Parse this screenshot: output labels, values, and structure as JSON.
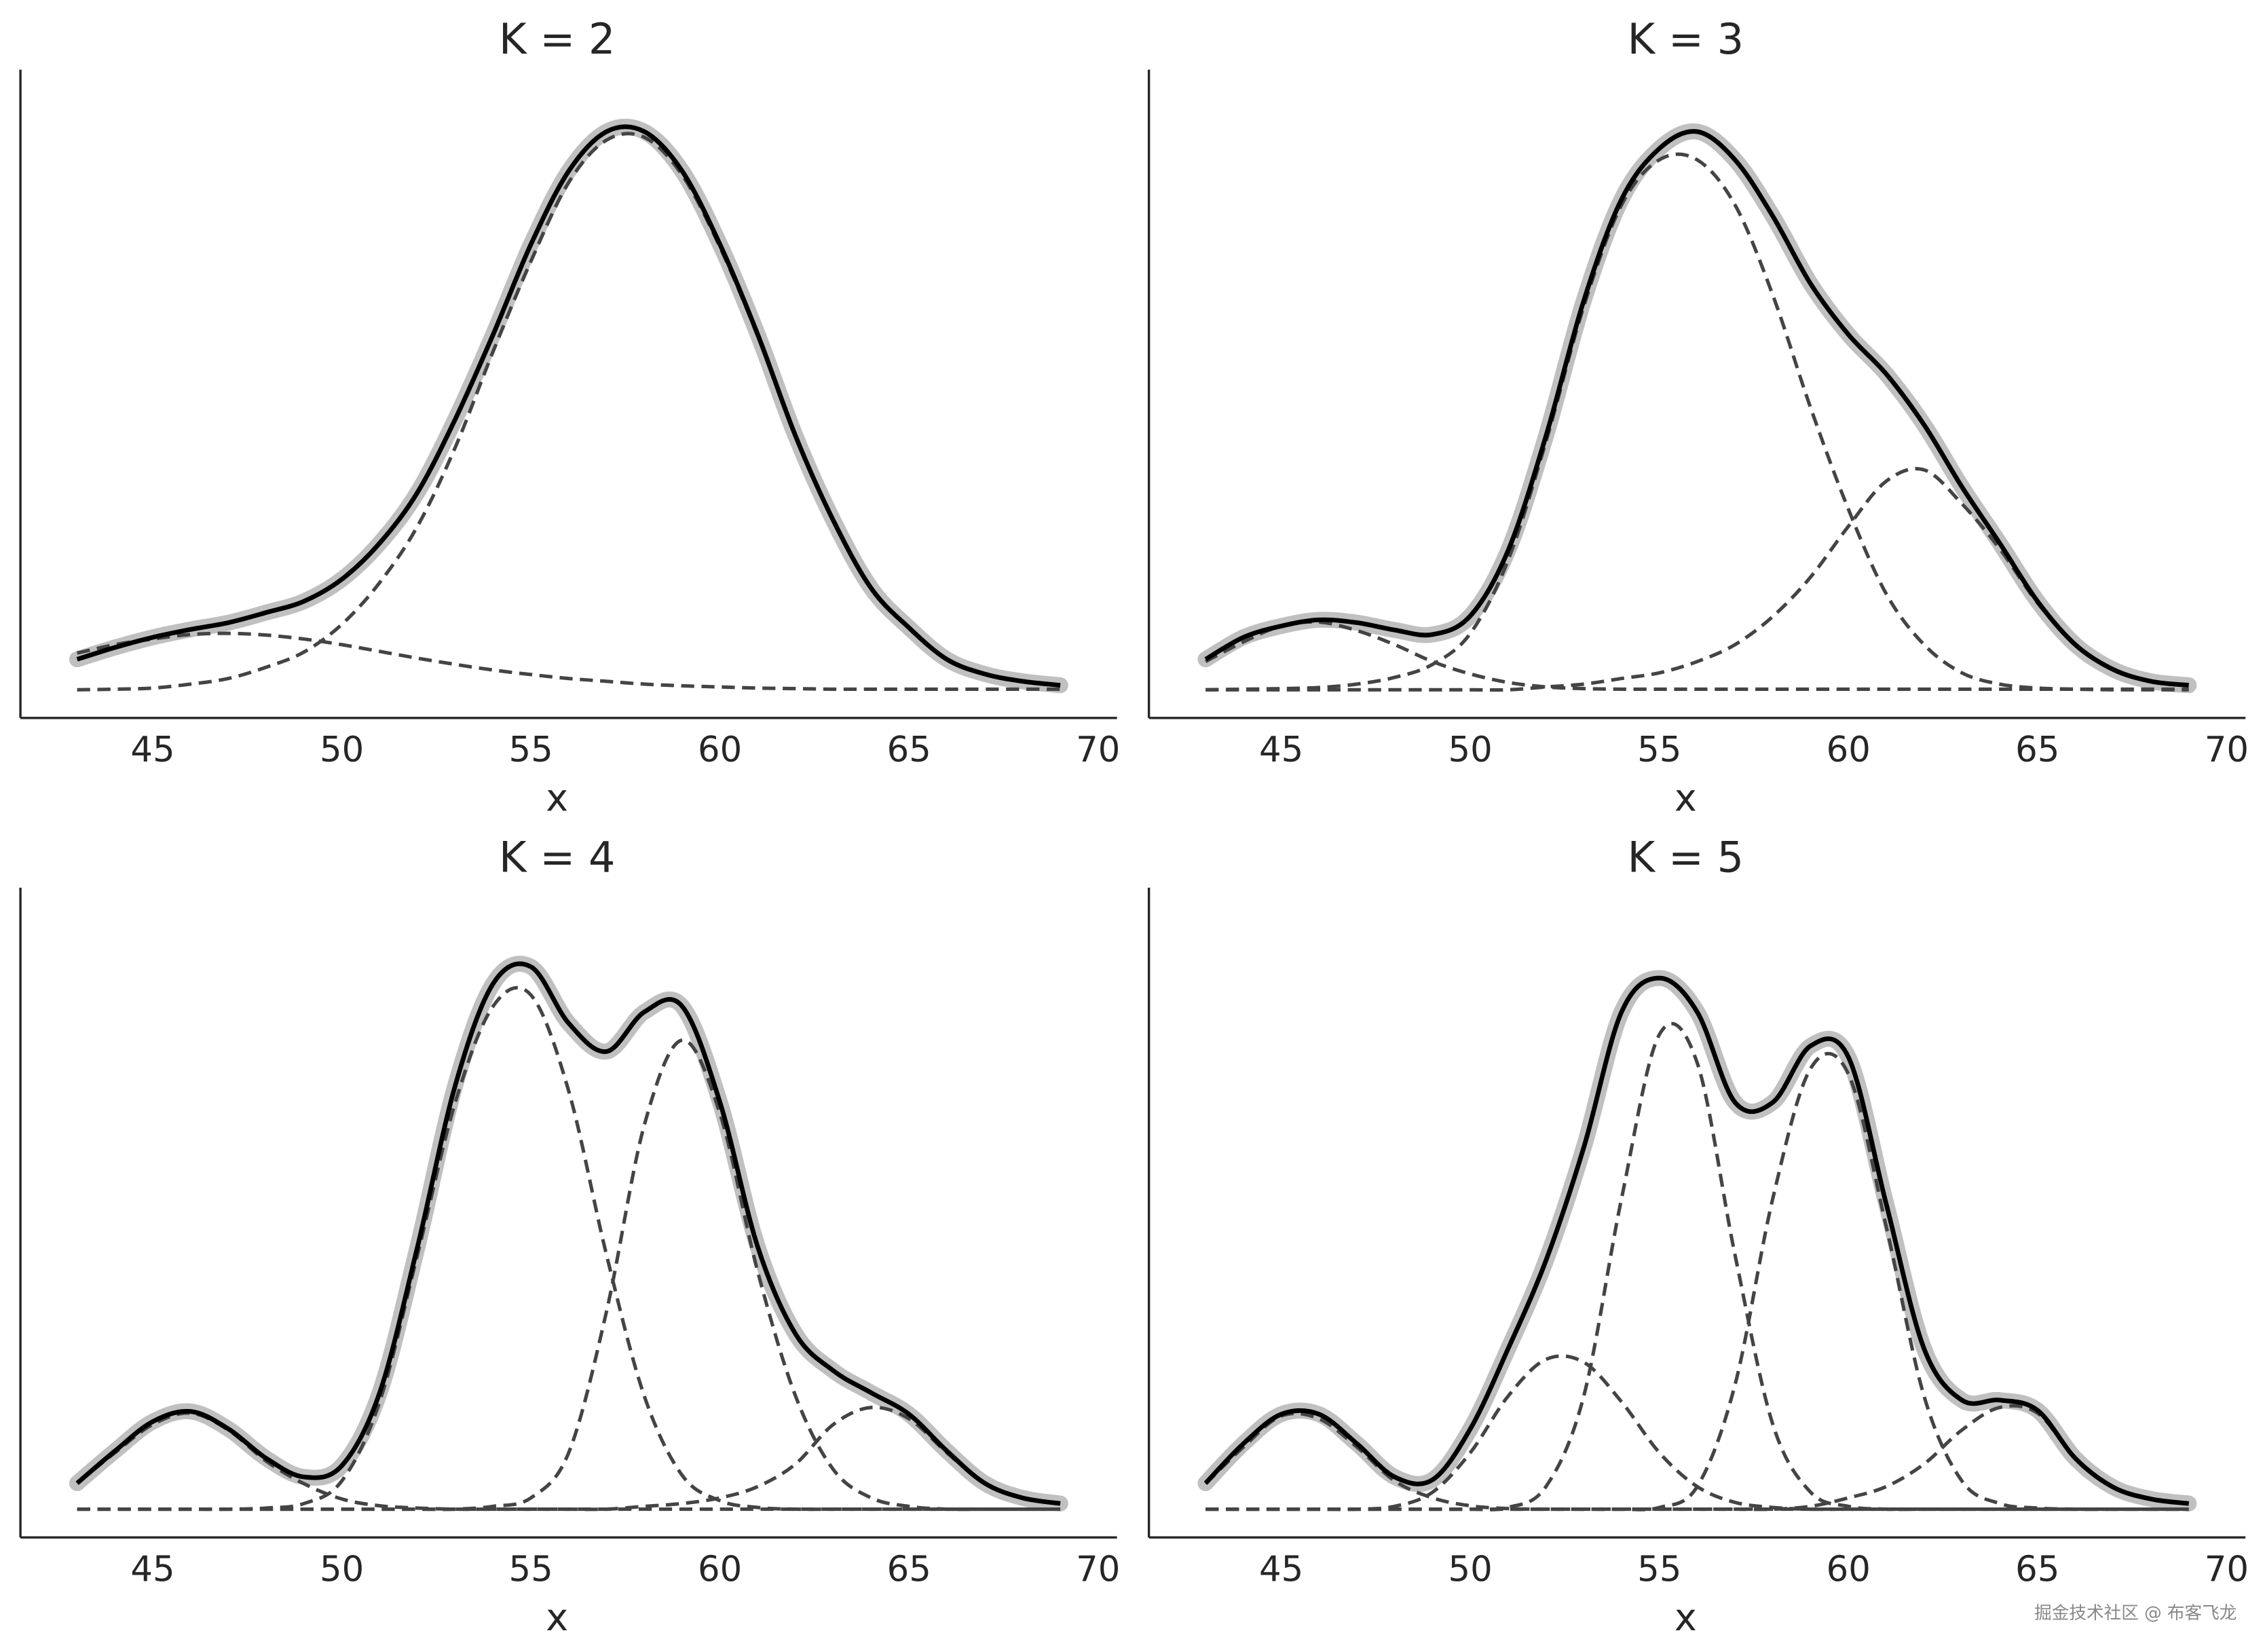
{
  "chart_data": [
    {
      "type": "line",
      "title": "K = 2",
      "xlabel": "x",
      "x": [
        43,
        44,
        45,
        46,
        47,
        48,
        49,
        50,
        51,
        52,
        53,
        54,
        55,
        56,
        57,
        58,
        59,
        60,
        61,
        62,
        63,
        64,
        65,
        66,
        67,
        68,
        69
      ],
      "xlim": [
        41.5,
        70.5
      ],
      "ylim": [
        -0.05,
        1.1
      ],
      "xticks": [
        45,
        50,
        55,
        60,
        65,
        70
      ],
      "band_color": "#c0c0c0",
      "series": [
        {
          "color": "#000000",
          "style": "solid",
          "values": [
            0.054,
            0.075,
            0.093,
            0.107,
            0.119,
            0.137,
            0.157,
            0.196,
            0.26,
            0.35,
            0.48,
            0.63,
            0.79,
            0.92,
            0.99,
            0.99,
            0.92,
            0.79,
            0.63,
            0.45,
            0.3,
            0.18,
            0.11,
            0.054,
            0.028,
            0.015,
            0.008
          ]
        },
        {
          "color": "#444444",
          "style": "dashed",
          "values": [
            0.065,
            0.08,
            0.09,
            0.098,
            0.1,
            0.097,
            0.09,
            0.08,
            0.068,
            0.056,
            0.045,
            0.035,
            0.027,
            0.02,
            0.015,
            0.01,
            0.007,
            0.005,
            0.003,
            0.002,
            0.001,
            0.001,
            0.001,
            0.001,
            0.001,
            0.001,
            0.001
          ]
        },
        {
          "color": "#444444",
          "style": "dashed",
          "values": [
            0,
            0.001,
            0.003,
            0.01,
            0.02,
            0.04,
            0.067,
            0.116,
            0.19,
            0.29,
            0.43,
            0.6,
            0.76,
            0.9,
            0.975,
            0.98,
            0.913,
            0.785,
            0.627,
            0.448,
            0.299,
            0.179,
            0.109,
            0.053,
            0.027,
            0.014,
            0.007
          ]
        }
      ]
    },
    {
      "type": "line",
      "title": "K = 3",
      "xlabel": "x",
      "x": [
        43,
        44,
        45,
        46,
        47,
        48,
        49,
        50,
        51,
        52,
        53,
        54,
        55,
        56,
        57,
        58,
        59,
        60,
        61,
        62,
        63,
        64,
        65,
        66,
        67,
        68,
        69
      ],
      "xlim": [
        41.5,
        70.5
      ],
      "ylim": [
        -0.05,
        1.1
      ],
      "xticks": [
        45,
        50,
        55,
        60,
        65,
        70
      ],
      "band_color": "#c0c0c0",
      "series": [
        {
          "color": "#000000",
          "style": "solid",
          "values": [
            0.054,
            0.093,
            0.113,
            0.124,
            0.119,
            0.106,
            0.098,
            0.131,
            0.247,
            0.45,
            0.69,
            0.87,
            0.96,
            0.99,
            0.94,
            0.84,
            0.72,
            0.63,
            0.56,
            0.47,
            0.36,
            0.26,
            0.157,
            0.08,
            0.036,
            0.015,
            0.008
          ]
        },
        {
          "color": "#444444",
          "style": "dashed",
          "values": [
            0.05,
            0.085,
            0.113,
            0.12,
            0.105,
            0.08,
            0.05,
            0.028,
            0.013,
            0.005,
            0.002,
            0.001,
            0.001,
            0.001,
            0.001,
            0.001,
            0.001,
            0.001,
            0.001,
            0.001,
            0.001,
            0.001,
            0.001,
            0.001,
            0.001,
            0.001,
            0.001
          ]
        },
        {
          "color": "#444444",
          "style": "dashed",
          "values": [
            0,
            0.001,
            0.002,
            0.004,
            0.01,
            0.022,
            0.045,
            0.1,
            0.23,
            0.44,
            0.68,
            0.86,
            0.94,
            0.94,
            0.86,
            0.7,
            0.5,
            0.32,
            0.17,
            0.08,
            0.03,
            0.01,
            0.003,
            0.001,
            0,
            0,
            0
          ]
        },
        {
          "color": "#444444",
          "style": "dashed",
          "values": [
            0,
            0,
            0,
            0,
            0,
            0,
            0,
            0,
            0,
            0.005,
            0.01,
            0.02,
            0.03,
            0.05,
            0.08,
            0.13,
            0.2,
            0.29,
            0.37,
            0.39,
            0.33,
            0.25,
            0.154,
            0.08,
            0.036,
            0.015,
            0.008
          ]
        }
      ]
    },
    {
      "type": "line",
      "title": "K = 4",
      "xlabel": "x",
      "x": [
        43,
        44,
        45,
        46,
        47,
        48,
        49,
        50,
        51,
        52,
        53,
        54,
        55,
        56,
        57,
        58,
        59,
        60,
        61,
        62,
        63,
        64,
        65,
        66,
        67,
        68,
        69
      ],
      "xlim": [
        41.5,
        70.5
      ],
      "ylim": [
        -0.05,
        1.1
      ],
      "xticks": [
        45,
        50,
        55,
        60,
        65,
        70
      ],
      "band_color": "#c0c0c0",
      "series": [
        {
          "color": "#000000",
          "style": "solid",
          "values": [
            0.046,
            0.103,
            0.155,
            0.173,
            0.142,
            0.09,
            0.057,
            0.077,
            0.206,
            0.464,
            0.75,
            0.93,
            0.96,
            0.86,
            0.81,
            0.88,
            0.89,
            0.72,
            0.464,
            0.31,
            0.245,
            0.206,
            0.168,
            0.103,
            0.046,
            0.02,
            0.01
          ]
        },
        {
          "color": "#444444",
          "style": "dashed",
          "values": [
            0.046,
            0.1,
            0.15,
            0.17,
            0.14,
            0.085,
            0.045,
            0.018,
            0.006,
            0.002,
            0,
            0,
            0,
            0,
            0,
            0,
            0,
            0,
            0,
            0,
            0,
            0,
            0,
            0,
            0,
            0,
            0
          ]
        },
        {
          "color": "#444444",
          "style": "dashed",
          "values": [
            0,
            0,
            0,
            0,
            0,
            0.002,
            0.01,
            0.05,
            0.19,
            0.45,
            0.72,
            0.89,
            0.91,
            0.74,
            0.45,
            0.2,
            0.06,
            0.015,
            0.003,
            0,
            0,
            0,
            0,
            0,
            0,
            0,
            0
          ]
        },
        {
          "color": "#444444",
          "style": "dashed",
          "values": [
            0,
            0,
            0,
            0,
            0,
            0,
            0,
            0,
            0,
            0,
            0,
            0.005,
            0.02,
            0.1,
            0.35,
            0.68,
            0.83,
            0.7,
            0.42,
            0.2,
            0.07,
            0.02,
            0.005,
            0,
            0,
            0,
            0
          ]
        },
        {
          "color": "#444444",
          "style": "dashed",
          "values": [
            0,
            0,
            0,
            0,
            0,
            0,
            0,
            0,
            0,
            0,
            0,
            0,
            0,
            0,
            0,
            0.005,
            0.01,
            0.02,
            0.04,
            0.08,
            0.15,
            0.18,
            0.16,
            0.1,
            0.046,
            0.02,
            0.01
          ]
        }
      ]
    },
    {
      "type": "line",
      "title": "K = 5",
      "xlabel": "x",
      "x": [
        43,
        44,
        45,
        46,
        47,
        48,
        49,
        50,
        51,
        52,
        53,
        54,
        55,
        56,
        57,
        58,
        59,
        60,
        61,
        62,
        63,
        64,
        65,
        66,
        67,
        68,
        69
      ],
      "xlim": [
        41.5,
        70.5
      ],
      "ylim": [
        -0.05,
        1.1
      ],
      "xticks": [
        45,
        50,
        55,
        60,
        65,
        70
      ],
      "band_color": "#c0c0c0",
      "series": [
        {
          "color": "#000000",
          "style": "solid",
          "values": [
            0.046,
            0.116,
            0.168,
            0.168,
            0.116,
            0.057,
            0.052,
            0.142,
            0.284,
            0.44,
            0.64,
            0.88,
            0.94,
            0.88,
            0.72,
            0.72,
            0.82,
            0.8,
            0.54,
            0.284,
            0.193,
            0.193,
            0.175,
            0.09,
            0.039,
            0.018,
            0.01
          ]
        },
        {
          "color": "#444444",
          "style": "dashed",
          "values": [
            0.045,
            0.11,
            0.165,
            0.16,
            0.11,
            0.05,
            0.02,
            0.006,
            0.001,
            0,
            0,
            0,
            0,
            0,
            0,
            0,
            0,
            0,
            0,
            0,
            0,
            0,
            0,
            0,
            0,
            0,
            0
          ]
        },
        {
          "color": "#444444",
          "style": "dashed",
          "values": [
            0,
            0,
            0,
            0,
            0,
            0.005,
            0.03,
            0.1,
            0.2,
            0.265,
            0.26,
            0.19,
            0.1,
            0.04,
            0.012,
            0.003,
            0,
            0,
            0,
            0,
            0,
            0,
            0,
            0,
            0,
            0,
            0
          ]
        },
        {
          "color": "#444444",
          "style": "dashed",
          "values": [
            0,
            0,
            0,
            0,
            0,
            0,
            0,
            0,
            0.003,
            0.04,
            0.2,
            0.55,
            0.84,
            0.79,
            0.45,
            0.15,
            0.03,
            0.005,
            0,
            0,
            0,
            0,
            0,
            0,
            0,
            0,
            0
          ]
        },
        {
          "color": "#444444",
          "style": "dashed",
          "values": [
            0,
            0,
            0,
            0,
            0,
            0,
            0,
            0,
            0,
            0,
            0,
            0,
            0.003,
            0.04,
            0.22,
            0.55,
            0.78,
            0.77,
            0.5,
            0.2,
            0.05,
            0.01,
            0.002,
            0,
            0,
            0,
            0
          ]
        },
        {
          "color": "#444444",
          "style": "dashed",
          "values": [
            0,
            0,
            0,
            0,
            0,
            0,
            0,
            0,
            0,
            0,
            0,
            0,
            0,
            0,
            0,
            0,
            0.005,
            0.02,
            0.04,
            0.08,
            0.14,
            0.18,
            0.17,
            0.09,
            0.039,
            0.018,
            0.01
          ]
        }
      ]
    }
  ],
  "watermark": "掘金技术社区 @ 布客飞龙"
}
